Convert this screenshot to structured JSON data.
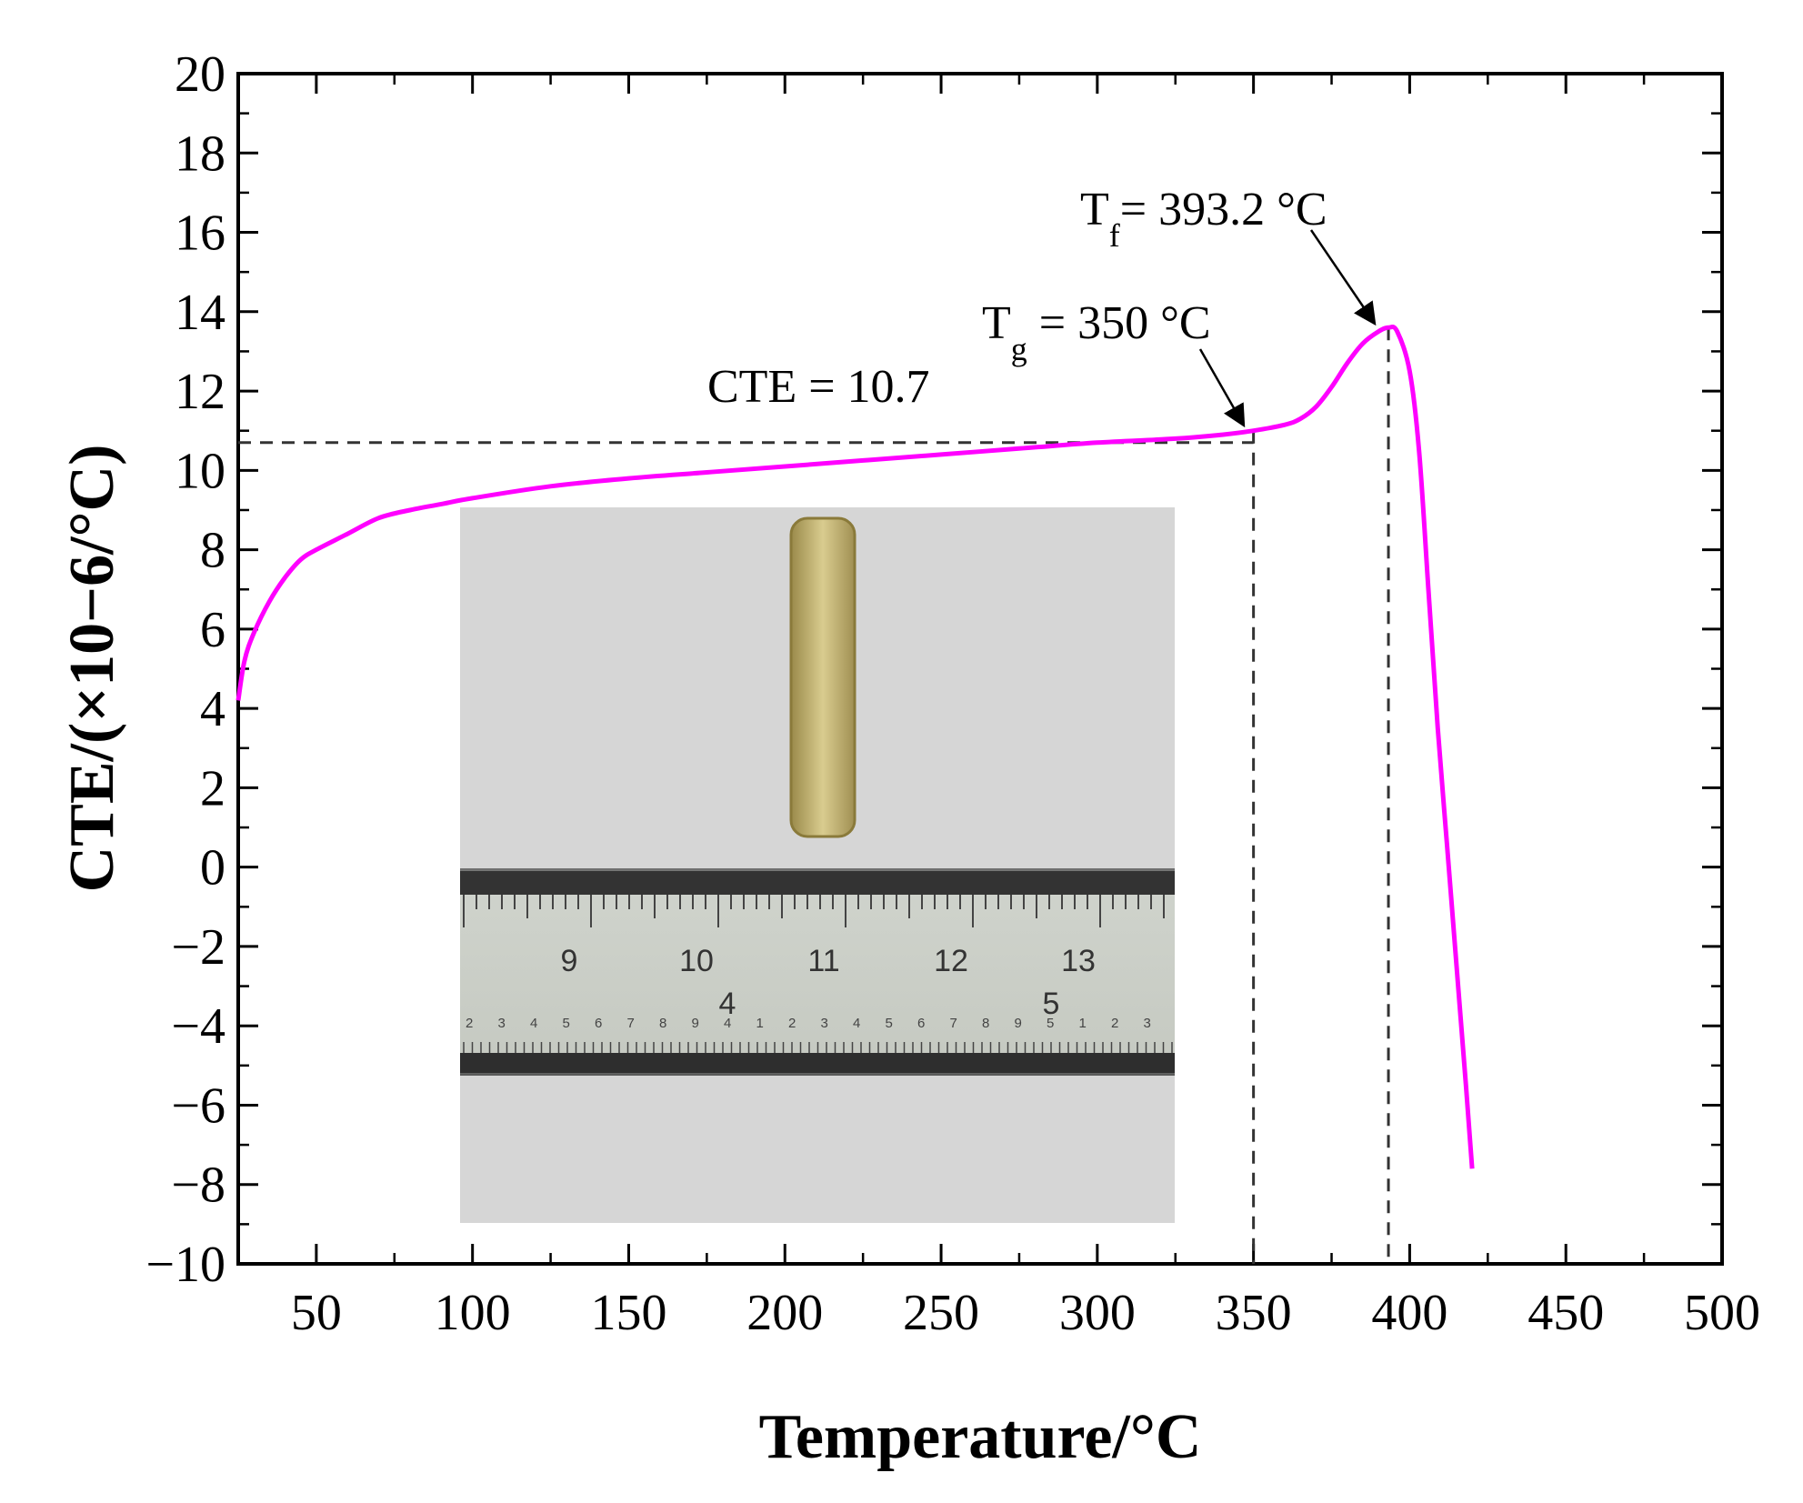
{
  "chart_data": {
    "type": "line",
    "xlabel": "Temperature/°C",
    "ylabel": "CTE/(×10−6/°C)",
    "xlim": [
      25,
      500
    ],
    "ylim": [
      -10,
      20
    ],
    "xticks": [
      50,
      100,
      150,
      200,
      250,
      300,
      350,
      400,
      450,
      500
    ],
    "yticks": [
      -10,
      -8,
      -6,
      -4,
      -2,
      0,
      2,
      4,
      6,
      8,
      10,
      12,
      14,
      16,
      18,
      20
    ],
    "line_color": "#ff00ff",
    "series": [
      {
        "x": [
          25,
          27,
          30,
          35,
          40,
          45,
          50,
          60,
          70,
          80,
          90,
          100,
          125,
          150,
          175,
          200,
          225,
          250,
          275,
          300,
          325,
          340,
          350,
          360,
          365,
          370,
          375,
          380,
          385,
          390,
          393.2,
          396,
          400,
          403,
          406,
          409,
          412,
          415,
          418,
          420
        ],
        "y": [
          4.2,
          5.2,
          5.9,
          6.7,
          7.3,
          7.75,
          8.0,
          8.4,
          8.8,
          9.0,
          9.15,
          9.3,
          9.6,
          9.8,
          9.95,
          10.1,
          10.25,
          10.4,
          10.55,
          10.7,
          10.8,
          10.9,
          11.0,
          11.15,
          11.3,
          11.6,
          12.1,
          12.7,
          13.2,
          13.5,
          13.6,
          13.5,
          12.5,
          10.5,
          7.0,
          3.5,
          0.5,
          -2.5,
          -5.5,
          -7.6
        ]
      }
    ],
    "reference_lines": {
      "cte_level": 10.7,
      "tg_x": 350,
      "tf_x": 393.2
    },
    "annotations": {
      "cte": "CTE = 10.7",
      "tg_main": "T",
      "tg_sub": "g",
      "tg_rest": " = 350 °C",
      "tf_main": "T",
      "tf_sub": "f",
      "tf_rest": "= 393.2 °C"
    },
    "inset_photo": {
      "ruler_cm_labels": [
        "9",
        "10",
        "11",
        "12",
        "13"
      ],
      "ruler_inch_labels": [
        "4",
        "5"
      ],
      "ruler_small_digits": [
        "2",
        "3",
        "4",
        "5",
        "6",
        "7",
        "8",
        "9",
        "4",
        "1",
        "2",
        "3",
        "4",
        "5",
        "6",
        "7",
        "8",
        "9",
        "5",
        "1",
        "2",
        "3"
      ]
    }
  }
}
